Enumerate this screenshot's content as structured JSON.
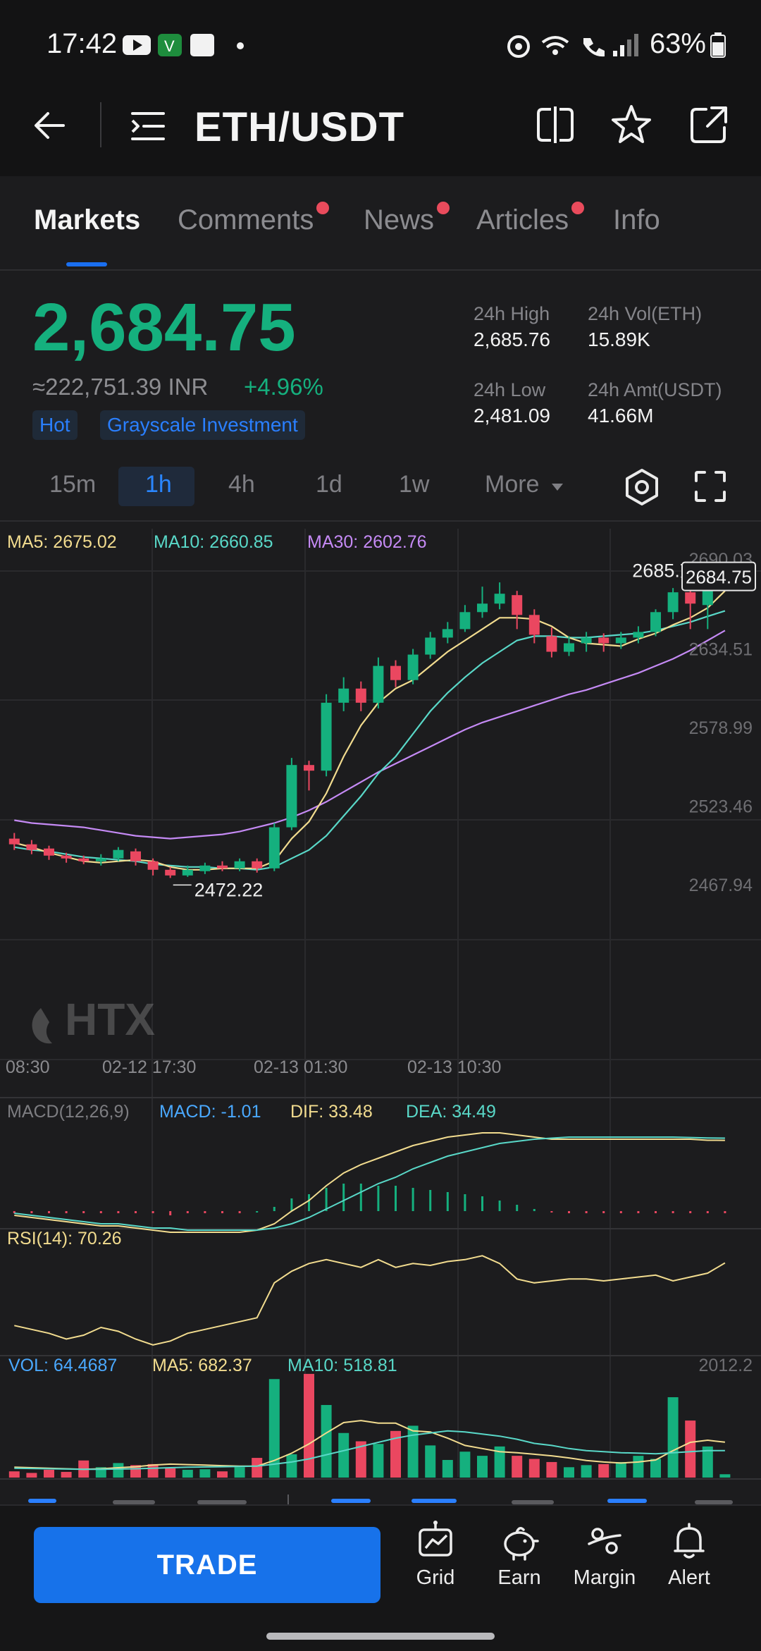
{
  "status_bar": {
    "time": "17:42",
    "battery": "63%"
  },
  "header": {
    "pair": "ETH/USDT"
  },
  "tabs": [
    {
      "label": "Markets",
      "dot": false,
      "active": true
    },
    {
      "label": "Comments",
      "dot": true
    },
    {
      "label": "News",
      "dot": true
    },
    {
      "label": "Articles",
      "dot": true
    },
    {
      "label": "Info",
      "dot": false
    }
  ],
  "price": {
    "last": "2,684.75",
    "inr": "≈222,751.39 INR",
    "change": "+4.96%",
    "tags": [
      "Hot",
      "Grayscale Investment"
    ],
    "high_label": "24h High",
    "high": "2,685.76",
    "vol_label": "24h Vol(ETH)",
    "vol": "15.89K",
    "low_label": "24h Low",
    "low": "2,481.09",
    "amt_label": "24h Amt(USDT)",
    "amt": "41.66M"
  },
  "intervals": {
    "items": [
      "15m",
      "1h",
      "4h",
      "1d",
      "1w",
      "More"
    ],
    "active": "1h"
  },
  "chart_data": {
    "type": "candlestick",
    "legend": {
      "ma5": "MA5: 2675.02",
      "ma10": "MA10: 2660.85",
      "ma30": "MA30: 2602.76"
    },
    "y_ticks": [
      "2690.03",
      "2634.51",
      "2578.99",
      "2523.46",
      "2467.94"
    ],
    "y_tick_values": [
      2690.03,
      2634.51,
      2578.99,
      2523.46,
      2467.94
    ],
    "x_labels": [
      "08:30",
      "02-12 17:30",
      "02-13 01:30",
      "02-13 10:30"
    ],
    "high_marker": "2685.76",
    "low_marker": "2472.22",
    "last_price": "2684.75",
    "ohlc": [
      [
        2500,
        2496,
        2504,
        2492
      ],
      [
        2496,
        2492,
        2499,
        2489
      ],
      [
        2493,
        2488,
        2495,
        2485
      ],
      [
        2488,
        2486,
        2490,
        2483
      ],
      [
        2486,
        2484,
        2488,
        2482
      ],
      [
        2484,
        2486,
        2489,
        2481
      ],
      [
        2486,
        2492,
        2494,
        2484
      ],
      [
        2491,
        2484,
        2493,
        2481
      ],
      [
        2484,
        2478,
        2486,
        2474
      ],
      [
        2478,
        2474,
        2480,
        2472.22
      ],
      [
        2474,
        2478,
        2481,
        2473
      ],
      [
        2477,
        2481,
        2483,
        2475
      ],
      [
        2481,
        2479,
        2484,
        2477
      ],
      [
        2479,
        2484,
        2486,
        2477
      ],
      [
        2484,
        2479,
        2486,
        2476
      ],
      [
        2479,
        2508,
        2511,
        2477
      ],
      [
        2508,
        2552,
        2557,
        2506
      ],
      [
        2552,
        2548,
        2555,
        2534
      ],
      [
        2548,
        2596,
        2602,
        2544
      ],
      [
        2596,
        2606,
        2614,
        2590
      ],
      [
        2606,
        2596,
        2611,
        2590
      ],
      [
        2596,
        2622,
        2628,
        2592
      ],
      [
        2622,
        2612,
        2626,
        2607
      ],
      [
        2612,
        2630,
        2634,
        2609
      ],
      [
        2630,
        2642,
        2646,
        2627
      ],
      [
        2642,
        2648,
        2653,
        2638
      ],
      [
        2648,
        2660,
        2665,
        2646
      ],
      [
        2660,
        2666,
        2678,
        2656
      ],
      [
        2666,
        2673,
        2681,
        2662
      ],
      [
        2672,
        2658,
        2675,
        2648
      ],
      [
        2658,
        2644,
        2662,
        2638
      ],
      [
        2643,
        2632,
        2649,
        2628
      ],
      [
        2632,
        2638,
        2643,
        2629
      ],
      [
        2638,
        2642,
        2646,
        2632
      ],
      [
        2642,
        2638,
        2645,
        2632
      ],
      [
        2638,
        2642,
        2646,
        2634
      ],
      [
        2642,
        2646,
        2650,
        2638
      ],
      [
        2646,
        2660,
        2662,
        2643
      ],
      [
        2660,
        2674,
        2677,
        2655
      ],
      [
        2674,
        2666,
        2678,
        2648
      ],
      [
        2665,
        2680,
        2682,
        2648
      ],
      [
        2680,
        2684.75,
        2685.76,
        2676
      ]
    ],
    "ma5": [
      2497,
      2494,
      2490,
      2487,
      2484,
      2483,
      2484,
      2485,
      2484,
      2480,
      2478,
      2478,
      2479,
      2479,
      2479,
      2484,
      2500,
      2512,
      2532,
      2558,
      2580,
      2596,
      2606,
      2612,
      2622,
      2632,
      2640,
      2648,
      2656,
      2656,
      2655,
      2650,
      2642,
      2638,
      2637,
      2636,
      2641,
      2645,
      2651,
      2656,
      2663,
      2675
    ],
    "ma10": [
      2494,
      2492,
      2491,
      2489,
      2487,
      2486,
      2485,
      2484,
      2482,
      2481,
      2480,
      2480,
      2479,
      2479,
      2478,
      2480,
      2486,
      2492,
      2502,
      2516,
      2530,
      2546,
      2558,
      2574,
      2590,
      2603,
      2614,
      2624,
      2632,
      2640,
      2643,
      2643,
      2642,
      2642,
      2643,
      2644,
      2645,
      2647,
      2650,
      2653,
      2657,
      2660.85
    ],
    "ma30": [
      2513,
      2511,
      2510,
      2509,
      2508,
      2506,
      2504,
      2502,
      2501,
      2500,
      2501,
      2502,
      2503,
      2505,
      2508,
      2511,
      2515,
      2520,
      2526,
      2533,
      2540,
      2547,
      2553,
      2559,
      2565,
      2571,
      2577,
      2582,
      2586,
      2590,
      2594,
      2598,
      2602,
      2605,
      2609,
      2613,
      2617,
      2622,
      2627,
      2633,
      2640,
      2647
    ],
    "macd": {
      "title": "MACD(12,26,9)",
      "macd": "MACD: -1.01",
      "dif": "DIF: 33.48",
      "dea": "DEA: 34.49",
      "dif_series": [
        -2,
        -3,
        -4,
        -5,
        -6,
        -7,
        -7,
        -8,
        -9,
        -10,
        -10,
        -10,
        -10,
        -10,
        -9,
        -6,
        0,
        5,
        12,
        18,
        22,
        25,
        28,
        31,
        33,
        35,
        36,
        37,
        37,
        36,
        35,
        34,
        34,
        34,
        34,
        34,
        34,
        34,
        34,
        34,
        33.5,
        33.48
      ],
      "dea_series": [
        -1,
        -2,
        -3,
        -4,
        -5,
        -6,
        -6,
        -7,
        -8,
        -8,
        -9,
        -9,
        -9,
        -9,
        -9,
        -8,
        -6,
        -3,
        1,
        5,
        9,
        13,
        16,
        20,
        23,
        26,
        28,
        30,
        32,
        33,
        34,
        34.5,
        35,
        35,
        35,
        35,
        35,
        35,
        35,
        34.8,
        34.6,
        34.49
      ],
      "hist": [
        -1,
        -1,
        -1,
        -1,
        -1,
        -1,
        -1,
        -1,
        -1,
        -2,
        -1,
        -1,
        -1,
        -1,
        0,
        2,
        6,
        8,
        11,
        13,
        13,
        12,
        12,
        11,
        10,
        9,
        8,
        7,
        5,
        3,
        1,
        -0.5,
        -1,
        -1,
        -1,
        -1,
        -1,
        -1,
        -1,
        -1,
        -1,
        -1.01
      ]
    },
    "rsi": {
      "label": "RSI(14): 70.26",
      "series": [
        38,
        36,
        34,
        31,
        33,
        37,
        35,
        31,
        28,
        30,
        34,
        36,
        38,
        40,
        42,
        60,
        66,
        70,
        72,
        70,
        68,
        72,
        68,
        70,
        69,
        71,
        72,
        74,
        70,
        62,
        60,
        61,
        62,
        62,
        61,
        62,
        63,
        64,
        61,
        63,
        65,
        70.26
      ]
    },
    "vol": {
      "label": "VOL: 64.4687",
      "ma5": "MA5: 682.37",
      "ma10": "MA10: 518.81",
      "axis_max": "2012.2",
      "axis_max_value": 2012.2,
      "values": [
        120,
        90,
        150,
        110,
        330,
        200,
        280,
        240,
        260,
        180,
        150,
        160,
        120,
        200,
        380,
        1900,
        450,
        2000,
        1400,
        860,
        700,
        650,
        900,
        1000,
        620,
        340,
        500,
        420,
        600,
        420,
        360,
        300,
        200,
        240,
        260,
        300,
        420,
        360,
        1550,
        1100,
        600,
        64.4687
      ],
      "ma5_series": [
        200,
        190,
        180,
        170,
        160,
        170,
        190,
        210,
        240,
        260,
        250,
        240,
        230,
        220,
        220,
        330,
        470,
        650,
        860,
        1060,
        1100,
        1050,
        1050,
        900,
        880,
        760,
        620,
        560,
        500,
        480,
        450,
        420,
        380,
        330,
        300,
        280,
        300,
        340,
        520,
        680,
        720,
        682.37
      ],
      "ma10_series": [
        180,
        175,
        170,
        165,
        160,
        160,
        165,
        170,
        180,
        190,
        200,
        205,
        210,
        215,
        220,
        260,
        300,
        360,
        440,
        520,
        600,
        680,
        760,
        820,
        860,
        900,
        880,
        840,
        800,
        740,
        660,
        620,
        560,
        520,
        500,
        480,
        470,
        460,
        480,
        500,
        520,
        518.81
      ]
    }
  },
  "bottom_bar": {
    "trade_label": "TRADE",
    "actions": [
      {
        "label": "Grid",
        "icon": "grid-bot-icon"
      },
      {
        "label": "Earn",
        "icon": "piggy-bank-icon"
      },
      {
        "label": "Margin",
        "icon": "percent-icon"
      },
      {
        "label": "Alert",
        "icon": "bell-icon"
      }
    ]
  },
  "colors": {
    "up": "#15b07e",
    "down": "#ea4760",
    "ma5": "#f2dc8f",
    "ma10": "#59d8c8",
    "ma30": "#c58af5",
    "accent": "#1772ea",
    "macd_label": "#4aa9ff",
    "vol_label": "#4aa9ff"
  }
}
